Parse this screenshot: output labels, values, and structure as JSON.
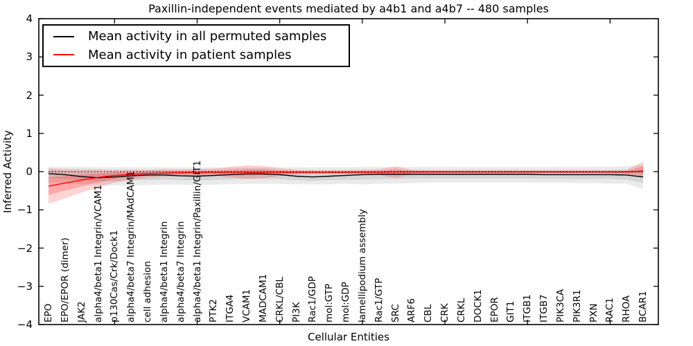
{
  "chart_data": {
    "type": "line",
    "title": "Paxillin-independent events mediated by a4b1 and a4b7 -- 480 samples",
    "xlabel": "Cellular Entities",
    "ylabel": "Inferred Activity",
    "ylim": [
      -4,
      4
    ],
    "ytick_values": [
      4,
      3,
      2,
      1,
      0,
      -1,
      -2,
      -3,
      -4
    ],
    "ytick_labels": [
      "4",
      "3",
      "2",
      "1",
      "0",
      "−1",
      "−2",
      "−3",
      "−4"
    ],
    "grid": false,
    "legend_position": "upper-left",
    "categories": [
      "EPO",
      "EPO/EPOR (dimer)",
      "JAK2",
      "alpha4/beta1 Integrin/VCAM1",
      "p130Cas/Crk/Dock1",
      "alpha4/beta7 Integrin/MAdCAM1",
      "cell adhesion",
      "alpha4/beta1 Integrin",
      "alpha4/beta7 Integrin",
      "alpha4/beta1 Integrin/Paxillin/GIT1",
      "PTK2",
      "ITGA4",
      "VCAM1",
      "MADCAM1",
      "CRKL/CBL",
      "PI3K",
      "Rac1/GDP",
      "mol:GTP",
      "mol:GDP",
      "lamellipodium assembly",
      "Rac1/GTP",
      "SRC",
      "ARF6",
      "CBL",
      "CRK",
      "CRKL",
      "DOCK1",
      "EPOR",
      "GIT1",
      "ITGB1",
      "ITGB7",
      "PIK3CA",
      "PIK3R1",
      "PXN",
      "RAC1",
      "RHOA",
      "BCAR1"
    ],
    "series": [
      {
        "name": "Mean activity in all permuted samples",
        "color": "#000000",
        "band_color": "#808080",
        "values": [
          -0.05,
          -0.08,
          -0.13,
          -0.16,
          -0.14,
          -0.11,
          -0.09,
          -0.09,
          -0.11,
          -0.12,
          -0.1,
          -0.08,
          -0.06,
          -0.06,
          -0.08,
          -0.12,
          -0.14,
          -0.12,
          -0.1,
          -0.08,
          -0.07,
          -0.07,
          -0.07,
          -0.07,
          -0.07,
          -0.07,
          -0.07,
          -0.07,
          -0.07,
          -0.07,
          -0.08,
          -0.08,
          -0.08,
          -0.08,
          -0.08,
          -0.09,
          -0.14
        ],
        "band_top": [
          0.13,
          0.12,
          0.12,
          0.11,
          0.11,
          0.11,
          0.11,
          0.11,
          0.11,
          0.11,
          0.11,
          0.11,
          0.11,
          0.11,
          0.11,
          0.11,
          0.11,
          0.11,
          0.11,
          0.12,
          0.12,
          0.12,
          0.12,
          0.12,
          0.12,
          0.12,
          0.12,
          0.12,
          0.12,
          0.12,
          0.12,
          0.12,
          0.12,
          0.13,
          0.13,
          0.14,
          0.18
        ],
        "band_bottom": [
          -0.28,
          -0.3,
          -0.33,
          -0.35,
          -0.36,
          -0.36,
          -0.35,
          -0.34,
          -0.34,
          -0.35,
          -0.34,
          -0.33,
          -0.32,
          -0.32,
          -0.32,
          -0.33,
          -0.34,
          -0.33,
          -0.32,
          -0.33,
          -0.32,
          -0.31,
          -0.3,
          -0.29,
          -0.29,
          -0.29,
          -0.29,
          -0.29,
          -0.29,
          -0.29,
          -0.29,
          -0.29,
          -0.3,
          -0.3,
          -0.31,
          -0.32,
          -0.46
        ]
      },
      {
        "name": "Mean activity in patient samples",
        "color": "#ff0000",
        "band_color": "#ff0000",
        "values": [
          -0.38,
          -0.3,
          -0.22,
          -0.15,
          -0.1,
          -0.07,
          -0.05,
          -0.04,
          -0.03,
          -0.02,
          -0.02,
          -0.02,
          -0.02,
          -0.02,
          -0.02,
          -0.02,
          -0.02,
          -0.02,
          -0.02,
          -0.02,
          -0.02,
          -0.01,
          -0.01,
          -0.01,
          -0.01,
          -0.01,
          -0.01,
          -0.01,
          -0.01,
          -0.01,
          -0.01,
          -0.01,
          -0.01,
          -0.01,
          -0.01,
          -0.01,
          0.02
        ],
        "band_top": [
          0.09,
          0.07,
          0.06,
          0.06,
          0.05,
          0.05,
          0.05,
          0.06,
          0.06,
          0.07,
          0.08,
          0.12,
          0.17,
          0.15,
          0.09,
          0.05,
          0.04,
          0.04,
          0.04,
          0.05,
          0.06,
          0.14,
          0.05,
          0.04,
          0.04,
          0.04,
          0.04,
          0.04,
          0.04,
          0.04,
          0.04,
          0.04,
          0.04,
          0.04,
          0.04,
          0.05,
          0.26
        ],
        "band_bottom": [
          -0.84,
          -0.7,
          -0.55,
          -0.41,
          -0.29,
          -0.21,
          -0.16,
          -0.13,
          -0.11,
          -0.11,
          -0.11,
          -0.15,
          -0.19,
          -0.17,
          -0.12,
          -0.07,
          -0.06,
          -0.06,
          -0.06,
          -0.07,
          -0.08,
          -0.17,
          -0.07,
          -0.06,
          -0.05,
          -0.05,
          -0.05,
          -0.05,
          -0.05,
          -0.05,
          -0.05,
          -0.05,
          -0.05,
          -0.05,
          -0.06,
          -0.07,
          -0.16
        ]
      }
    ],
    "zero_line": {
      "value": 0,
      "color": "#000000",
      "style": "dotted"
    }
  }
}
